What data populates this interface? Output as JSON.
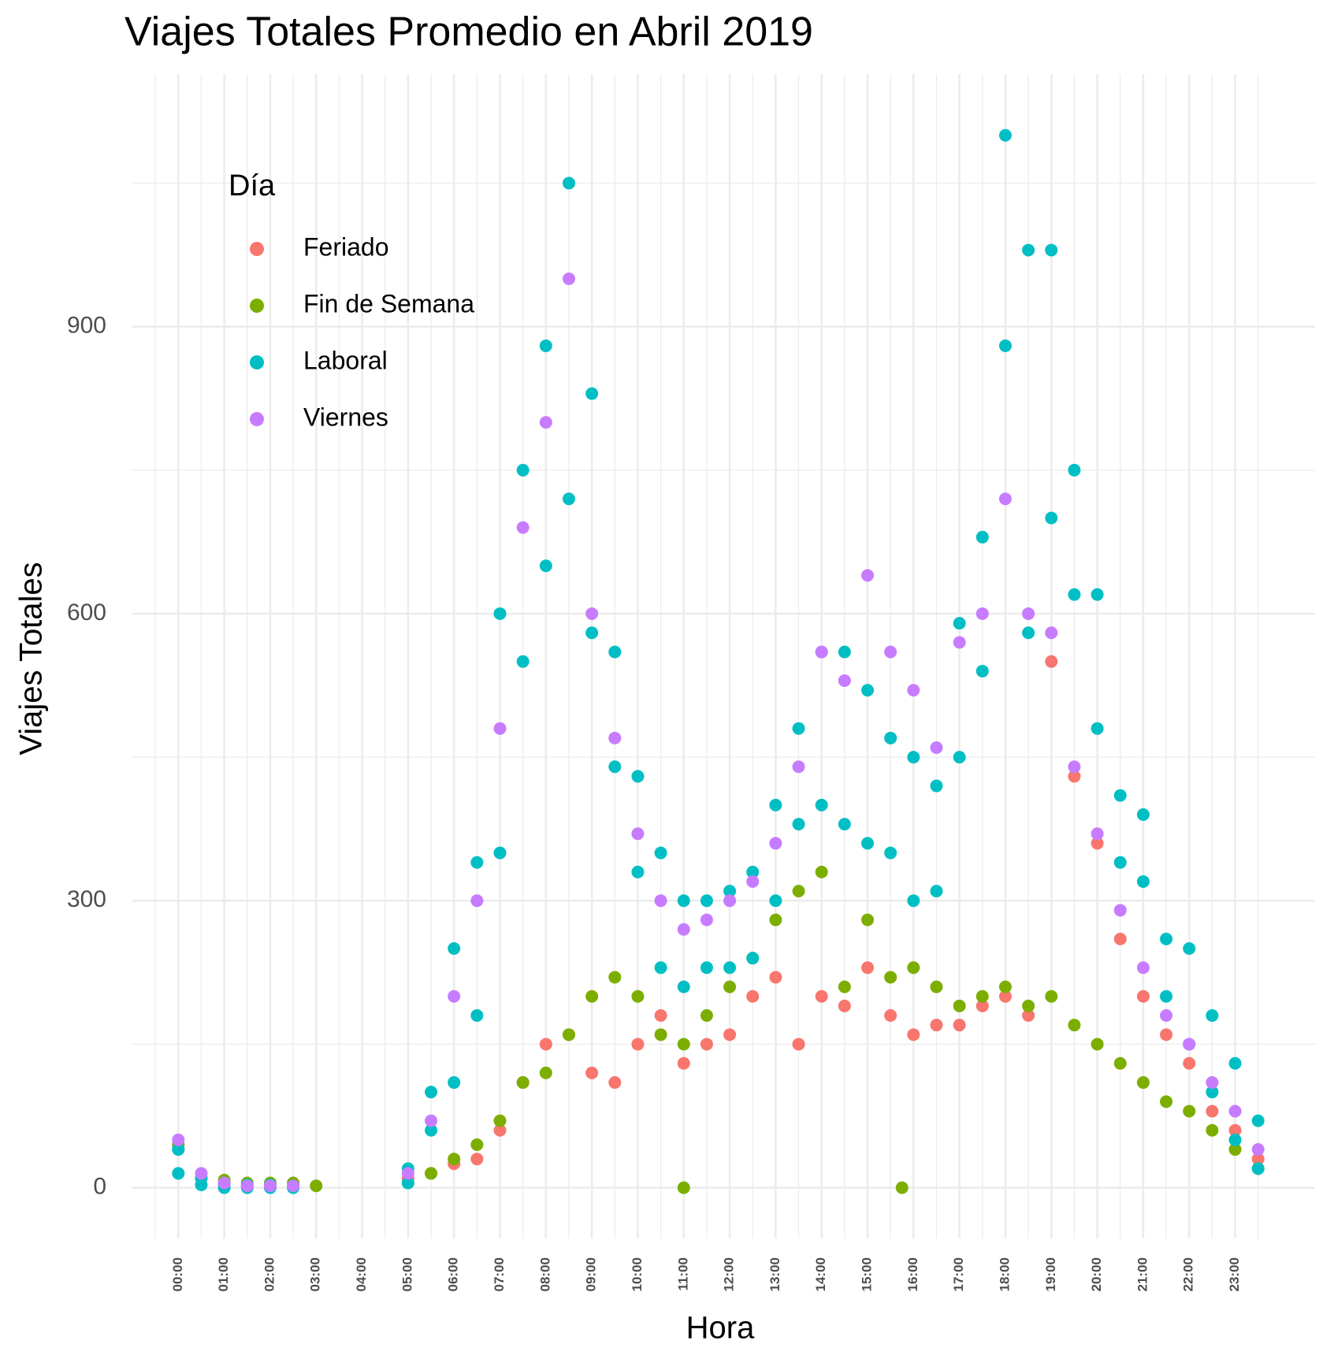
{
  "chart_data": {
    "type": "scatter",
    "title": "Viajes Totales Promedio en Abril 2019",
    "x_label": "Hora",
    "y_label": "Viajes Totales",
    "legend": {
      "title": "Día",
      "position": "top-left"
    },
    "grid": true,
    "xlim": [
      -1,
      24.74
    ],
    "ylim": [
      -53,
      1164
    ],
    "xticks": [
      {
        "value": 0,
        "label": "00:00"
      },
      {
        "value": 1,
        "label": "01:00"
      },
      {
        "value": 2,
        "label": "02:00"
      },
      {
        "value": 3,
        "label": "03:00"
      },
      {
        "value": 4,
        "label": "04:00"
      },
      {
        "value": 5,
        "label": "05:00"
      },
      {
        "value": 6,
        "label": "06:00"
      },
      {
        "value": 7,
        "label": "07:00"
      },
      {
        "value": 8,
        "label": "08:00"
      },
      {
        "value": 9,
        "label": "09:00"
      },
      {
        "value": 10,
        "label": "10:00"
      },
      {
        "value": 11,
        "label": "11:00"
      },
      {
        "value": 12,
        "label": "12:00"
      },
      {
        "value": 13,
        "label": "13:00"
      },
      {
        "value": 14,
        "label": "14:00"
      },
      {
        "value": 15,
        "label": "15:00"
      },
      {
        "value": 16,
        "label": "16:00"
      },
      {
        "value": 17,
        "label": "17:00"
      },
      {
        "value": 18,
        "label": "18:00"
      },
      {
        "value": 19,
        "label": "19:00"
      },
      {
        "value": 20,
        "label": "20:00"
      },
      {
        "value": 21,
        "label": "21:00"
      },
      {
        "value": 22,
        "label": "22:00"
      },
      {
        "value": 23,
        "label": "23:00"
      }
    ],
    "x_minor_ticks": [
      -0.5,
      0.5,
      1.5,
      2.5,
      3.5,
      4.5,
      5.5,
      6.5,
      7.5,
      8.5,
      9.5,
      10.5,
      11.5,
      12.5,
      13.5,
      14.5,
      15.5,
      16.5,
      17.5,
      18.5,
      19.5,
      20.5,
      21.5,
      22.5,
      23.5
    ],
    "yticks": [
      0,
      300,
      600,
      900
    ],
    "y_minor_ticks": [
      150,
      450,
      750,
      1050
    ],
    "series": [
      {
        "name": "Feriado",
        "color": "#F8766D",
        "x": [
          0,
          0.5,
          1,
          1.5,
          2,
          2.5,
          5,
          5.5,
          6,
          6.5,
          7,
          7.5,
          8,
          8.5,
          9,
          9.5,
          10,
          10.5,
          11,
          11.5,
          12,
          12.5,
          13,
          13.5,
          14,
          14.5,
          15,
          15.5,
          16,
          16.5,
          17,
          17.5,
          18,
          18.5,
          19,
          19.5,
          20,
          20.5,
          21,
          21.5,
          22,
          22.5,
          23,
          23.5
        ],
        "values": [
          40,
          10,
          3,
          1,
          1,
          1,
          10,
          15,
          25,
          30,
          60,
          110,
          150,
          160,
          120,
          110,
          150,
          180,
          130,
          150,
          160,
          200,
          220,
          150,
          200,
          190,
          230,
          180,
          160,
          170,
          170,
          190,
          200,
          180,
          550,
          430,
          360,
          260,
          200,
          160,
          130,
          80,
          60,
          30
        ]
      },
      {
        "name": "Fin de Semana",
        "color": "#7CAE00",
        "x": [
          0,
          0.5,
          1,
          1.5,
          2,
          2.5,
          3,
          5,
          5.5,
          6,
          6.5,
          7,
          7.5,
          8,
          8.5,
          9,
          9.5,
          10,
          10.5,
          11,
          11,
          11.5,
          12,
          12.5,
          13,
          13.5,
          14,
          14.5,
          15,
          15.5,
          15.75,
          16,
          16.5,
          17,
          17.5,
          18,
          18.5,
          19,
          19.5,
          20,
          20.5,
          21,
          21.5,
          22,
          22.5,
          23,
          23.5
        ],
        "values": [
          45,
          10,
          8,
          5,
          5,
          5,
          2,
          5,
          15,
          30,
          45,
          70,
          110,
          120,
          160,
          200,
          220,
          200,
          160,
          150,
          0,
          180,
          210,
          240,
          280,
          310,
          330,
          210,
          280,
          220,
          0,
          230,
          210,
          190,
          200,
          210,
          190,
          200,
          170,
          150,
          130,
          110,
          90,
          80,
          60,
          40,
          20
        ]
      },
      {
        "name": "Laboral",
        "color": "#00BFC4",
        "x": [
          0,
          0,
          0.5,
          0.5,
          1,
          1,
          1.5,
          1.5,
          2,
          2,
          2.5,
          2.5,
          5,
          5,
          5.5,
          5.5,
          6,
          6,
          6.5,
          6.5,
          7,
          7,
          7.5,
          7.5,
          8,
          8,
          8.5,
          8.5,
          9,
          9,
          9.5,
          9.5,
          10,
          10,
          10.5,
          10.5,
          11,
          11,
          11.5,
          11.5,
          12,
          12,
          12.5,
          12.5,
          13,
          13,
          13.5,
          13.5,
          14,
          14,
          14.5,
          14.5,
          15,
          15,
          15.5,
          15.5,
          16,
          16,
          16.5,
          16.5,
          17,
          17,
          17.5,
          17.5,
          18,
          18,
          18.5,
          18.5,
          19,
          19,
          19.5,
          19.5,
          20,
          20,
          20.5,
          20.5,
          21,
          21,
          21.5,
          21.5,
          22,
          22,
          22.5,
          22.5,
          23,
          23,
          23.5,
          23.5
        ],
        "values": [
          15,
          40,
          3,
          10,
          0,
          5,
          0,
          3,
          0,
          3,
          0,
          2,
          5,
          20,
          60,
          100,
          110,
          250,
          180,
          340,
          350,
          600,
          550,
          750,
          650,
          880,
          720,
          1050,
          580,
          830,
          440,
          560,
          330,
          430,
          230,
          350,
          210,
          300,
          230,
          300,
          230,
          310,
          240,
          330,
          300,
          400,
          380,
          480,
          400,
          560,
          380,
          560,
          360,
          520,
          350,
          470,
          300,
          450,
          310,
          420,
          450,
          590,
          540,
          680,
          880,
          1100,
          580,
          980,
          700,
          980,
          620,
          750,
          480,
          620,
          340,
          410,
          320,
          390,
          200,
          260,
          150,
          250,
          100,
          180,
          50,
          130,
          20,
          70
        ]
      },
      {
        "name": "Viernes",
        "color": "#C77CFF",
        "x": [
          0,
          0.5,
          1,
          1.5,
          2,
          2.5,
          5,
          5.5,
          6,
          6.5,
          7,
          7.5,
          8,
          8.5,
          9,
          9.5,
          10,
          10.5,
          11,
          11.5,
          12,
          12.5,
          13,
          13.5,
          14,
          14.5,
          15,
          15.5,
          16,
          16.5,
          17,
          17.5,
          18,
          18.5,
          19,
          19.5,
          20,
          20.5,
          21,
          21.5,
          22,
          22.5,
          23,
          23.5
        ],
        "values": [
          50,
          15,
          5,
          2,
          2,
          2,
          15,
          70,
          200,
          300,
          480,
          690,
          800,
          950,
          600,
          470,
          370,
          300,
          270,
          280,
          300,
          320,
          360,
          440,
          560,
          530,
          640,
          560,
          520,
          460,
          570,
          600,
          720,
          600,
          580,
          440,
          370,
          290,
          230,
          180,
          150,
          110,
          80,
          40
        ]
      }
    ]
  }
}
